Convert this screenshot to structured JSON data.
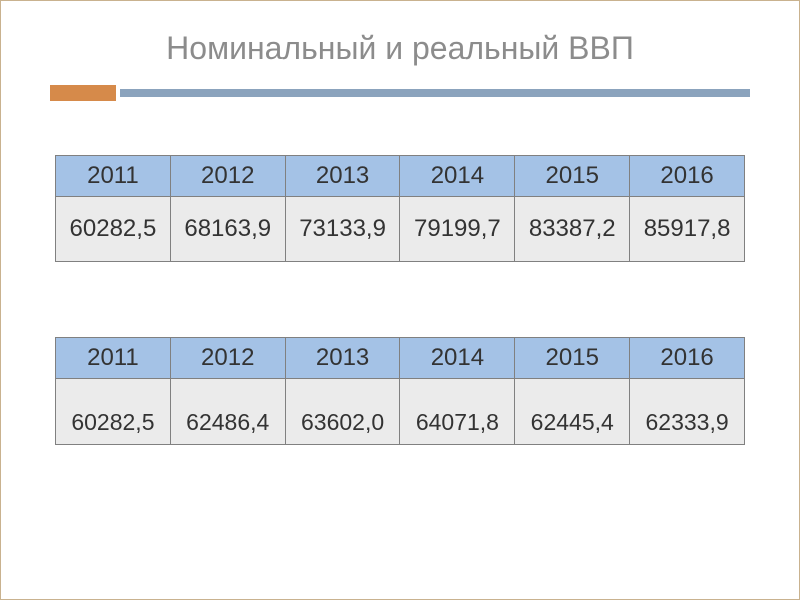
{
  "title": "Номинальный и реальный ВВП",
  "accent": {
    "orange_color": "#d68a4a",
    "blue_color": "#8ba3bd"
  },
  "table1": {
    "header_bg": "#a4c2e6",
    "cell_bg": "#ebebeb",
    "border_color": "#808080",
    "columns": [
      "2011",
      "2012",
      "2013",
      "2014",
      "2015",
      "2016"
    ],
    "rows": [
      [
        "60282,5",
        "68163,9",
        "73133,9",
        "79199,7",
        "83387,2",
        "85917,8"
      ]
    ],
    "header_fontsize": 24,
    "cell_fontsize": 24
  },
  "table2": {
    "header_bg": "#a4c2e6",
    "cell_bg": "#ebebeb",
    "border_color": "#808080",
    "columns": [
      "2011",
      "2012",
      "2013",
      "2014",
      "2015",
      "2016"
    ],
    "rows": [
      [
        "60282,5",
        "62486,4",
        "63602,0",
        "64071,8",
        "62445,4",
        "62333,9"
      ]
    ],
    "header_fontsize": 24,
    "cell_fontsize": 23
  }
}
